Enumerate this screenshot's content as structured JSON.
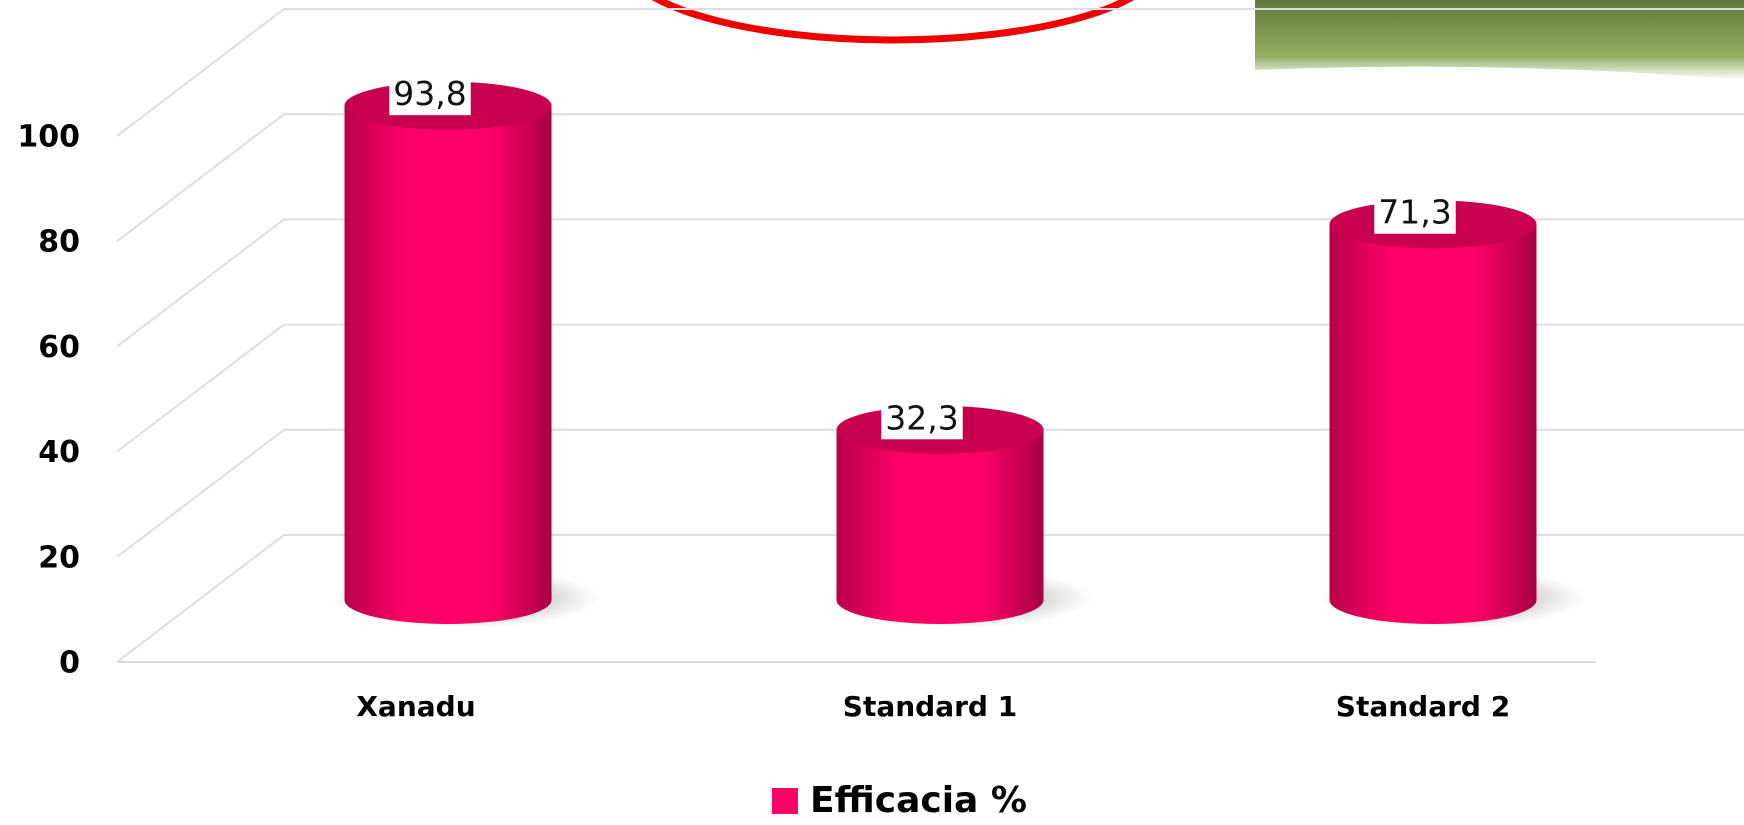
{
  "chart_data": {
    "type": "bar",
    "categories": [
      "Xanadu",
      "Standard 1",
      "Standard 2"
    ],
    "series": [
      {
        "name": "Efficacia %",
        "color": "#ff0066",
        "values": [
          93.8,
          32.3,
          71.3
        ],
        "value_labels": [
          "93,8",
          "32,3",
          "71,3"
        ]
      }
    ],
    "ylim": [
      0,
      100
    ],
    "yticks": [
      0,
      20,
      40,
      60,
      80,
      100
    ],
    "grid": true,
    "legend": "bottom"
  }
}
